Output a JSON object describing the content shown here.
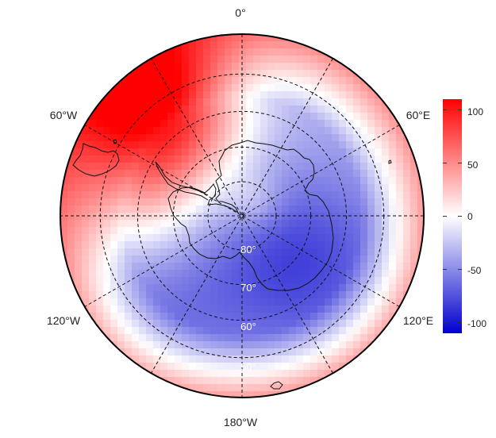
{
  "map": {
    "projection": "south-polar-stereographic",
    "longitude_labels": [
      "0°",
      "60°E",
      "120°E",
      "180°W",
      "120°W",
      "60°W"
    ],
    "latitude_labels": [
      "80°",
      "70°",
      "60°",
      "50°"
    ],
    "outer_latitude": -40,
    "graticule": {
      "latitudes": [
        -80,
        -70,
        -60,
        -50
      ],
      "meridian_step_deg": 30
    }
  },
  "colorbar": {
    "ticks": [
      "100",
      "50",
      "0",
      "-50",
      "-100"
    ],
    "range": [
      -110,
      110
    ],
    "colors": {
      "high": "#ff0000",
      "mid": "#ffffff",
      "low": "#0000cd"
    }
  }
}
